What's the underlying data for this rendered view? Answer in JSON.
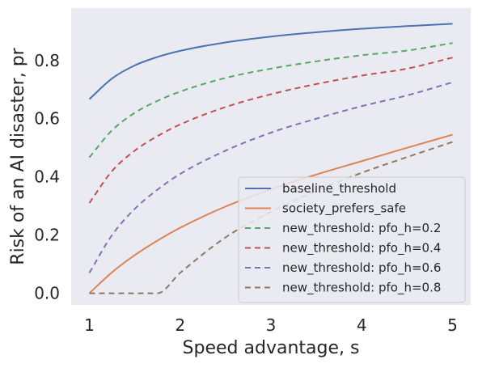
{
  "chart_data": {
    "type": "line",
    "title": "",
    "xlabel": "Speed advantage, s",
    "ylabel": "Risk of an AI disaster, pr",
    "xlim": [
      0.8,
      5.2
    ],
    "ylim": [
      -0.04,
      0.98
    ],
    "xticks": [
      1,
      2,
      3,
      4,
      5
    ],
    "yticks": [
      0.0,
      0.2,
      0.4,
      0.6,
      0.8
    ],
    "xtick_labels": [
      "1",
      "2",
      "3",
      "4",
      "5"
    ],
    "ytick_labels": [
      "0.0",
      "0.2",
      "0.4",
      "0.6",
      "0.8"
    ],
    "grid": false,
    "background": "#eaeaf2",
    "legend_position": "lower right",
    "x": [
      1.0,
      1.25,
      1.5,
      1.75,
      2.0,
      2.5,
      3.0,
      3.5,
      4.0,
      4.5,
      5.0
    ],
    "series": [
      {
        "name": "baseline_threshold",
        "color": "#4c72b0",
        "style": "solid",
        "values": [
          0.667,
          0.738,
          0.783,
          0.812,
          0.833,
          0.862,
          0.882,
          0.897,
          0.909,
          0.918,
          0.926
        ]
      },
      {
        "name": "society_prefers_safe",
        "color": "#dd8452",
        "style": "solid",
        "values": [
          0.0,
          0.072,
          0.131,
          0.181,
          0.225,
          0.298,
          0.357,
          0.408,
          0.454,
          0.5,
          0.545
        ]
      },
      {
        "name": "new_threshold: pfo_h=0.2",
        "color": "#55a868",
        "style": "dashed",
        "values": [
          0.467,
          0.56,
          0.62,
          0.661,
          0.693,
          0.74,
          0.772,
          0.797,
          0.818,
          0.834,
          0.86
        ]
      },
      {
        "name": "new_threshold: pfo_h=0.4",
        "color": "#c44e52",
        "style": "dashed",
        "values": [
          0.31,
          0.42,
          0.49,
          0.54,
          0.58,
          0.64,
          0.684,
          0.719,
          0.748,
          0.772,
          0.81
        ]
      },
      {
        "name": "new_threshold: pfo_h=0.6",
        "color": "#8172b3",
        "style": "dashed",
        "values": [
          0.07,
          0.2,
          0.29,
          0.356,
          0.41,
          0.49,
          0.552,
          0.6,
          0.643,
          0.68,
          0.725
        ]
      },
      {
        "name": "new_threshold: pfo_h=0.8",
        "color": "#937860",
        "style": "dashed",
        "values": [
          0.0,
          0.0,
          0.0,
          0.0,
          0.07,
          0.192,
          0.28,
          0.352,
          0.414,
          0.468,
          0.52
        ]
      }
    ]
  }
}
